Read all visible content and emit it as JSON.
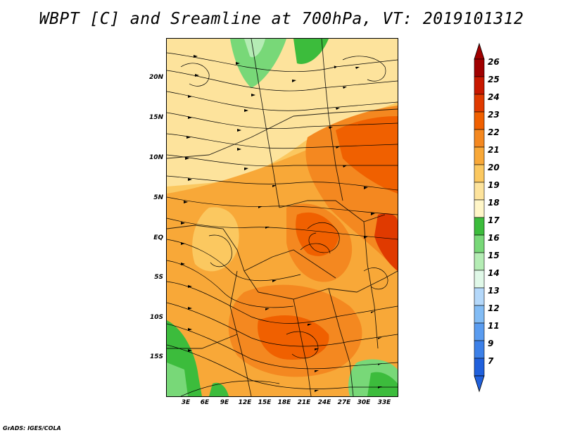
{
  "title": "WBPT [C] and Sreamline at 700hPa, VT: 2019101312",
  "credit": "GrADS: IGES/COLA",
  "lat_ticks": [
    "20N",
    "15N",
    "10N",
    "5N",
    "EQ",
    "5S",
    "10S",
    "15S"
  ],
  "lon_ticks": [
    "3E",
    "6E",
    "9E",
    "12E",
    "15E",
    "18E",
    "21E",
    "24E",
    "27E",
    "30E",
    "33E"
  ],
  "colorbar": {
    "levels": [
      "26",
      "25",
      "24",
      "23",
      "22",
      "21",
      "20",
      "19",
      "18",
      "17",
      "16",
      "15",
      "14",
      "13",
      "12",
      "11",
      "9",
      "7"
    ],
    "colors": [
      "#a00000",
      "#c81800",
      "#e03a00",
      "#f06000",
      "#f48820",
      "#f8a838",
      "#fbc860",
      "#fde39c",
      "#fff6c8",
      "#3cbc3c",
      "#78d878",
      "#b4ecb4",
      "#e0f8e8",
      "#b4d8fa",
      "#82bcf5",
      "#5a9cf0",
      "#3c80e8",
      "#2060dc"
    ]
  },
  "map": {
    "variable": "WBPT",
    "units": "C",
    "level": "700hPa",
    "valid_time": "2019101312"
  }
}
